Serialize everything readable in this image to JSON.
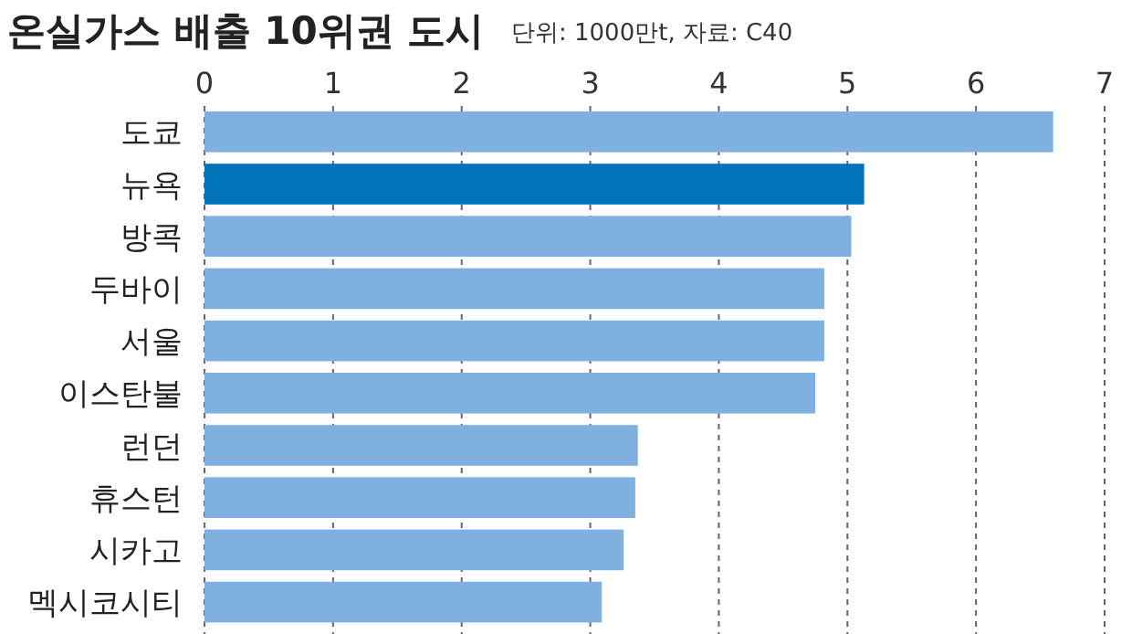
{
  "chart_data": {
    "type": "bar",
    "orientation": "horizontal",
    "title": "온실가스 배출 10위권 도시",
    "subtitle": "단위: 1000만t, 자료: C40",
    "categories": [
      "도쿄",
      "뉴욕",
      "방콕",
      "두바이",
      "서울",
      "이스탄불",
      "런던",
      "휴스턴",
      "시카고",
      "멕시코시티"
    ],
    "values": [
      6.6,
      5.13,
      5.03,
      4.82,
      4.82,
      4.75,
      3.37,
      3.35,
      3.26,
      3.09
    ],
    "colors": [
      "#7fb0df",
      "#0073bb",
      "#7fb0df",
      "#7fb0df",
      "#7fb0df",
      "#7fb0df",
      "#7fb0df",
      "#7fb0df",
      "#7fb0df",
      "#7fb0df"
    ],
    "xlim": [
      0,
      7
    ],
    "xticks": [
      0,
      1,
      2,
      3,
      4,
      5,
      6,
      7
    ],
    "grid": "x",
    "line_style": "dashed"
  }
}
